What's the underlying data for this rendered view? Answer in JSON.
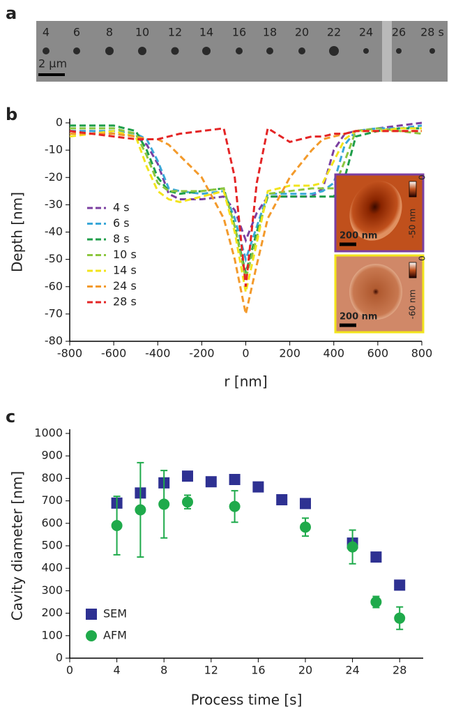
{
  "panel_labels": [
    "a",
    "b",
    "c"
  ],
  "image_panel": {
    "labels": [
      "4",
      "6",
      "8",
      "10",
      "12",
      "14",
      "16",
      "18",
      "20",
      "22",
      "24",
      "26",
      "28 s"
    ],
    "scale_bar": "2 µm"
  },
  "chart_data": [
    {
      "type": "line",
      "xlabel": "r [nm]",
      "ylabel": "Depth [nm]",
      "x": [
        -800,
        -700,
        -600,
        -500,
        -450,
        -400,
        -350,
        -300,
        -200,
        -100,
        -50,
        0,
        50,
        100,
        200,
        300,
        350,
        400,
        450,
        500,
        600,
        700,
        800
      ],
      "series": [
        {
          "name": "4 s",
          "color": "#7b3fa0",
          "values": [
            -3,
            -3,
            -4,
            -5,
            -8,
            -15,
            -26,
            -28,
            -28,
            -27,
            -32,
            -43,
            -33,
            -27,
            -27,
            -27,
            -24,
            -10,
            -4,
            -3,
            -2,
            -1,
            0
          ]
        },
        {
          "name": "6 s",
          "color": "#3aa8d8",
          "values": [
            -3,
            -3,
            -3,
            -4,
            -6,
            -14,
            -24,
            -25,
            -26,
            -25,
            -35,
            -50,
            -38,
            -26,
            -26,
            -26,
            -25,
            -22,
            -8,
            -3,
            -2,
            -2,
            -1
          ]
        },
        {
          "name": "8 s",
          "color": "#1f9e4a",
          "values": [
            -1,
            -1,
            -1,
            -3,
            -10,
            -20,
            -25,
            -26,
            -25,
            -24,
            -38,
            -55,
            -40,
            -27,
            -27,
            -27,
            -27,
            -27,
            -20,
            -5,
            -3,
            -2,
            -2
          ]
        },
        {
          "name": "10 s",
          "color": "#8cc63f",
          "values": [
            -2,
            -2,
            -2,
            -4,
            -12,
            -22,
            -25,
            -25,
            -25,
            -24,
            -38,
            -57,
            -42,
            -26,
            -25,
            -24,
            -24,
            -24,
            -14,
            -3,
            -2,
            -3,
            -4
          ]
        },
        {
          "name": "14 s",
          "color": "#f2e41c",
          "values": [
            -5,
            -4,
            -3,
            -5,
            -16,
            -25,
            -28,
            -29,
            -27,
            -25,
            -40,
            -62,
            -44,
            -25,
            -23,
            -23,
            -22,
            -14,
            -6,
            -3,
            -3,
            -2,
            -2
          ]
        },
        {
          "name": "24 s",
          "color": "#f39a2b",
          "values": [
            -4,
            -4,
            -4,
            -5,
            -6,
            -6,
            -8,
            -12,
            -20,
            -35,
            -50,
            -70,
            -52,
            -35,
            -20,
            -10,
            -6,
            -5,
            -4,
            -3,
            -3,
            -3,
            -3
          ]
        },
        {
          "name": "28 s",
          "color": "#e42526",
          "values": [
            -3,
            -4,
            -5,
            -6,
            -6,
            -6,
            -5,
            -4,
            -3,
            -2,
            -20,
            -60,
            -22,
            -2,
            -7,
            -5,
            -5,
            -4,
            -4,
            -3,
            -3,
            -3,
            -3
          ]
        }
      ],
      "xlim": [
        -800,
        800
      ],
      "ylim": [
        -80,
        0
      ],
      "xticks": [
        -800,
        -600,
        -400,
        -200,
        0,
        200,
        400,
        600,
        800
      ],
      "yticks": [
        0,
        -10,
        -20,
        -30,
        -40,
        -50,
        -60,
        -70,
        -80
      ],
      "insets": [
        {
          "scale_bar": "200 nm",
          "max": "0",
          "min": "-50 nm",
          "color": "#7b3fa0"
        },
        {
          "scale_bar": "200 nm",
          "max": "0",
          "min": "-60 nm",
          "color": "#f2e41c"
        }
      ]
    },
    {
      "type": "scatter",
      "xlabel": "Process time [s]",
      "ylabel": "Cavity diameter [nm]",
      "series": [
        {
          "name": "SEM",
          "color": "#2e3192",
          "marker": "square",
          "x": [
            4,
            6,
            8,
            10,
            12,
            14,
            16,
            18,
            20,
            24,
            26,
            28
          ],
          "values": [
            690,
            735,
            780,
            810,
            785,
            795,
            762,
            705,
            688,
            512,
            450,
            325
          ]
        },
        {
          "name": "AFM",
          "color": "#1faa4b",
          "marker": "circle",
          "x": [
            4,
            6,
            8,
            10,
            14,
            20,
            24,
            26,
            28
          ],
          "values": [
            590,
            660,
            685,
            695,
            675,
            583,
            495,
            250,
            178
          ],
          "errors": [
            130,
            210,
            150,
            30,
            70,
            40,
            75,
            25,
            50
          ]
        }
      ],
      "xlim": [
        0,
        30
      ],
      "ylim": [
        0,
        1000
      ],
      "xticks": [
        0,
        4,
        8,
        12,
        16,
        20,
        24,
        28
      ],
      "yticks": [
        0,
        100,
        200,
        300,
        400,
        500,
        600,
        700,
        800,
        900,
        1000
      ]
    }
  ]
}
